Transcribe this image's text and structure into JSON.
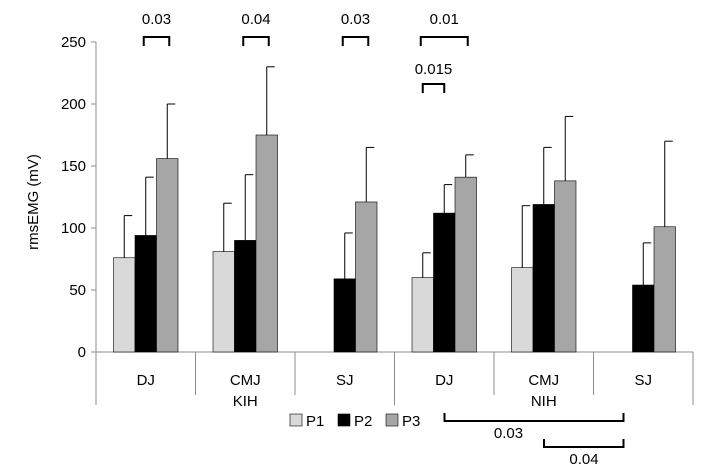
{
  "chart_data": {
    "type": "bar",
    "title": "",
    "xlabel": "",
    "ylabel": "rmsEMG (mV)",
    "ylim": [
      0,
      250
    ],
    "yticks": [
      0,
      50,
      100,
      150,
      200,
      250
    ],
    "grid": false,
    "categories": [
      "DJ",
      "CMJ",
      "SJ",
      "DJ",
      "CMJ",
      "SJ"
    ],
    "groups": [
      {
        "label": "KIH",
        "categories": [
          "DJ",
          "CMJ",
          "SJ"
        ]
      },
      {
        "label": "NIH",
        "categories": [
          "DJ",
          "CMJ",
          "SJ"
        ]
      }
    ],
    "legend": {
      "position": "bottom"
    },
    "series": [
      {
        "name": "P1",
        "color": "#d9d9d9",
        "values": [
          76,
          81,
          null,
          60,
          68,
          null
        ],
        "errors": [
          34,
          39,
          null,
          20,
          50,
          null
        ]
      },
      {
        "name": "P2",
        "color": "#000000",
        "values": [
          94,
          90,
          59,
          112,
          119,
          54
        ],
        "errors": [
          47,
          53,
          37,
          23,
          46,
          34
        ]
      },
      {
        "name": "P3",
        "color": "#a6a6a6",
        "values": [
          156,
          175,
          121,
          141,
          138,
          101
        ],
        "errors": [
          44,
          55,
          44,
          18,
          52,
          69
        ],
        "errors_extra": []
      }
    ],
    "top_annotations": [
      {
        "label": "0.03",
        "group_index": 0,
        "from_series": "P2",
        "to_series": "P3"
      },
      {
        "label": "0.04",
        "group_index": 1,
        "from_series": "P2",
        "to_series": "P3"
      },
      {
        "label": "0.03",
        "group_index": 2,
        "from_series": "P2",
        "to_series": "P3"
      },
      {
        "label": "0.01",
        "group_index": 3,
        "from_series": "P1",
        "to_series": "P3"
      },
      {
        "label": "0.015",
        "group_index": 3,
        "from_series": "P1",
        "to_series": "P2"
      }
    ],
    "bottom_annotations": [
      {
        "label": "0.03",
        "from_category_index": 3,
        "to_category_index": 5
      },
      {
        "label": "0.04",
        "from_category_index": 4,
        "to_category_index": 5
      }
    ]
  }
}
